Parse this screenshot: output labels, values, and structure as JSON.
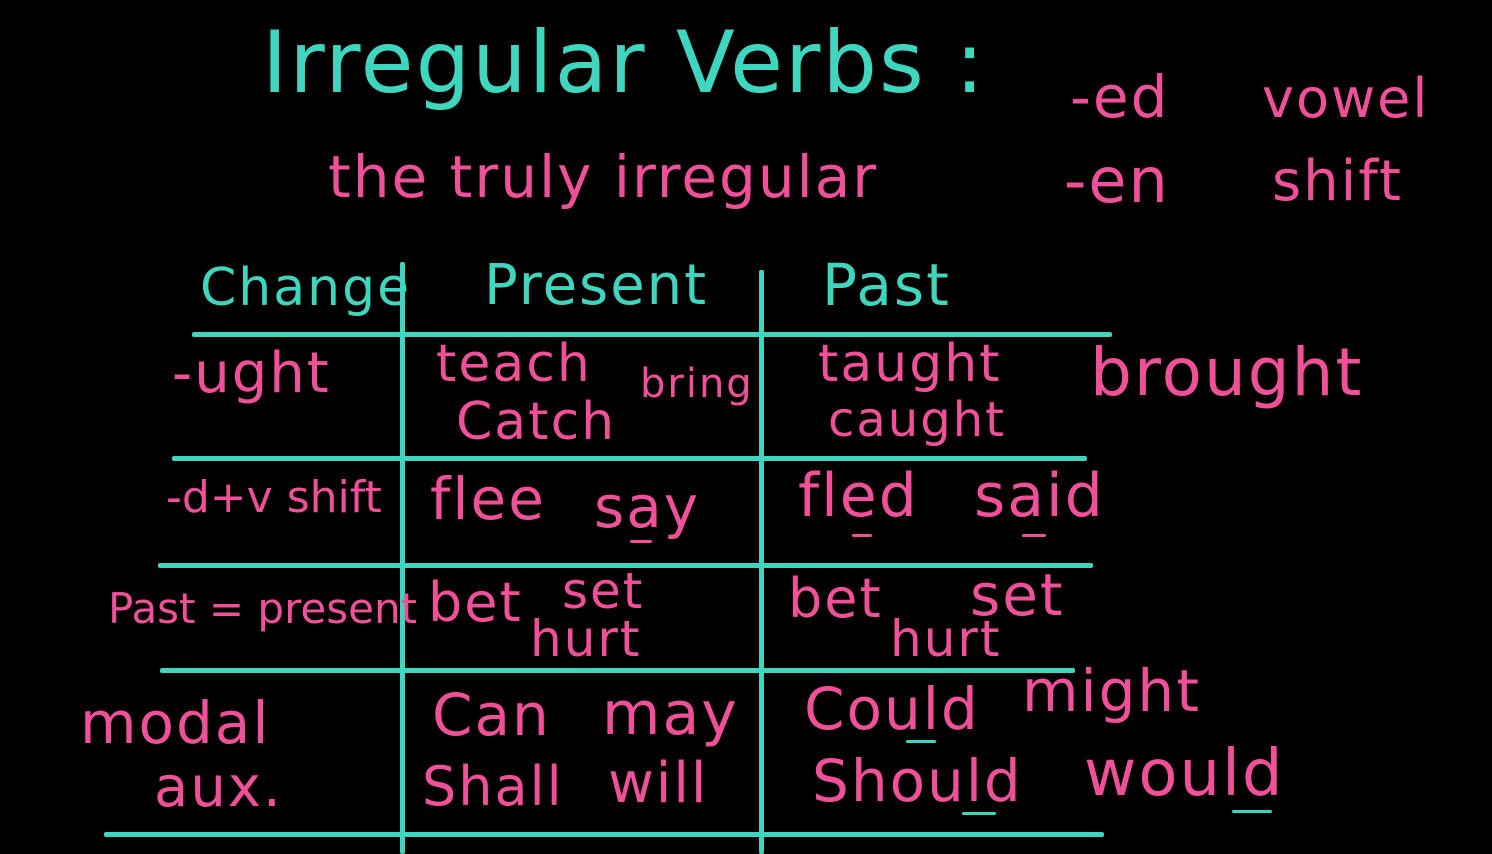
{
  "title": "Irregular Verbs :",
  "subtitle": "the truly irregular",
  "side_note": {
    "line1_suffix": "-ed",
    "line1_word": "vowel",
    "line2_suffix": "-en",
    "line2_word": "shift"
  },
  "table": {
    "headers": [
      "Change",
      "Present",
      "Past"
    ],
    "rows": [
      {
        "change": "-ught",
        "present": [
          "teach",
          "Catch",
          "bring"
        ],
        "past": [
          "taught",
          "caught",
          "brought"
        ]
      },
      {
        "change": "-d+v shift",
        "present": [
          "flee",
          "say"
        ],
        "past": [
          "fled",
          "said"
        ]
      },
      {
        "change": "Past = present",
        "present": [
          "bet",
          "set",
          "hurt"
        ],
        "past": [
          "bet",
          "set",
          "hurt"
        ]
      },
      {
        "change": [
          "modal",
          "aux."
        ],
        "present": [
          "Can",
          "may",
          "Shall",
          "will"
        ],
        "past": [
          "Could",
          "might",
          "Should",
          "would"
        ]
      }
    ]
  },
  "colors": {
    "background": "#000000",
    "teal_ink": "#3fd6bf",
    "pink_ink": "#f0509a"
  }
}
